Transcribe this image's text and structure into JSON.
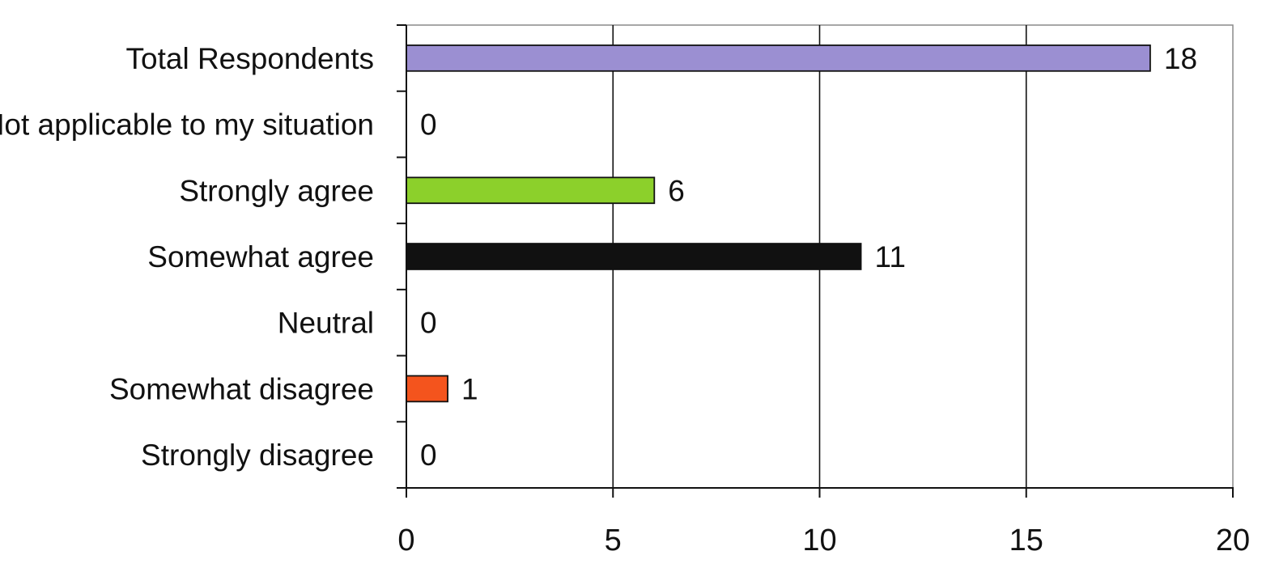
{
  "chart_data": {
    "type": "bar",
    "orientation": "horizontal",
    "title": "",
    "xlabel": "",
    "ylabel": "",
    "categories": [
      "Total Respondents",
      "Not applicable to my situation",
      "Strongly agree",
      "Somewhat agree",
      "Neutral",
      "Somewhat disagree",
      "Strongly disagree"
    ],
    "values": [
      18,
      0,
      6,
      11,
      0,
      1,
      0
    ],
    "bar_colors": [
      "#9b8fd2",
      "#ffffff",
      "#8cd02b",
      "#111111",
      "#ffffff",
      "#f4541d",
      "#ffffff"
    ],
    "xlim": [
      0,
      20
    ],
    "x_ticks": [
      0,
      5,
      10,
      15,
      20
    ],
    "grid": true,
    "legend": "none",
    "data_labels": true
  }
}
